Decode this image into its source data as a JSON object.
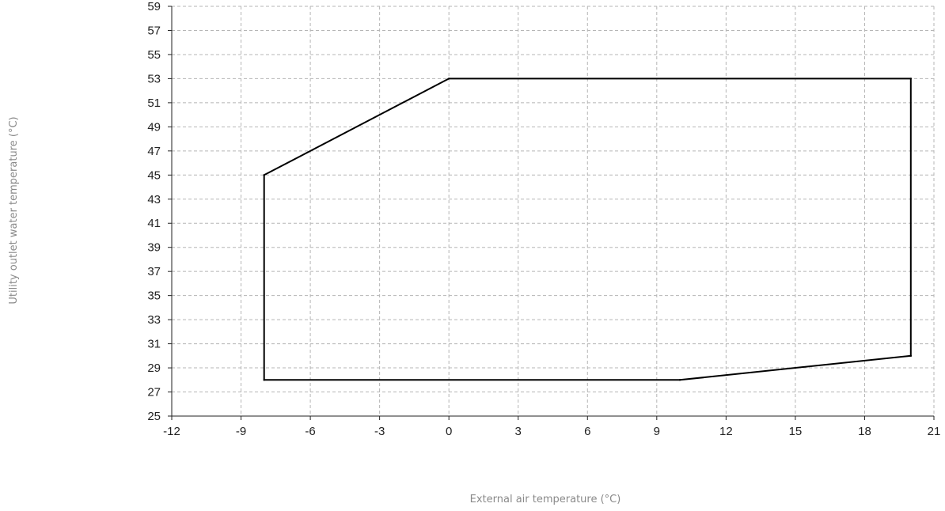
{
  "chart_data": {
    "type": "line",
    "title": "",
    "xlabel": "External air temperature (°C)",
    "ylabel": "Utility outlet water temperature (°C)",
    "xlim": [
      -12,
      21
    ],
    "ylim": [
      25,
      59
    ],
    "x_ticks": [
      -12,
      -9,
      -6,
      -3,
      0,
      3,
      6,
      9,
      12,
      15,
      18,
      21
    ],
    "y_ticks": [
      25,
      27,
      29,
      31,
      33,
      35,
      37,
      39,
      41,
      43,
      45,
      47,
      49,
      51,
      53,
      55,
      57,
      59
    ],
    "x_grid_step": 3,
    "y_grid_step": 2,
    "grid": true,
    "line_color": "#000000",
    "series": [
      {
        "closed": true,
        "points": [
          {
            "x": -8,
            "y": 45
          },
          {
            "x": 0,
            "y": 53
          },
          {
            "x": 20,
            "y": 53
          },
          {
            "x": 20,
            "y": 30
          },
          {
            "x": 10,
            "y": 28
          },
          {
            "x": -8,
            "y": 28
          }
        ]
      }
    ]
  }
}
